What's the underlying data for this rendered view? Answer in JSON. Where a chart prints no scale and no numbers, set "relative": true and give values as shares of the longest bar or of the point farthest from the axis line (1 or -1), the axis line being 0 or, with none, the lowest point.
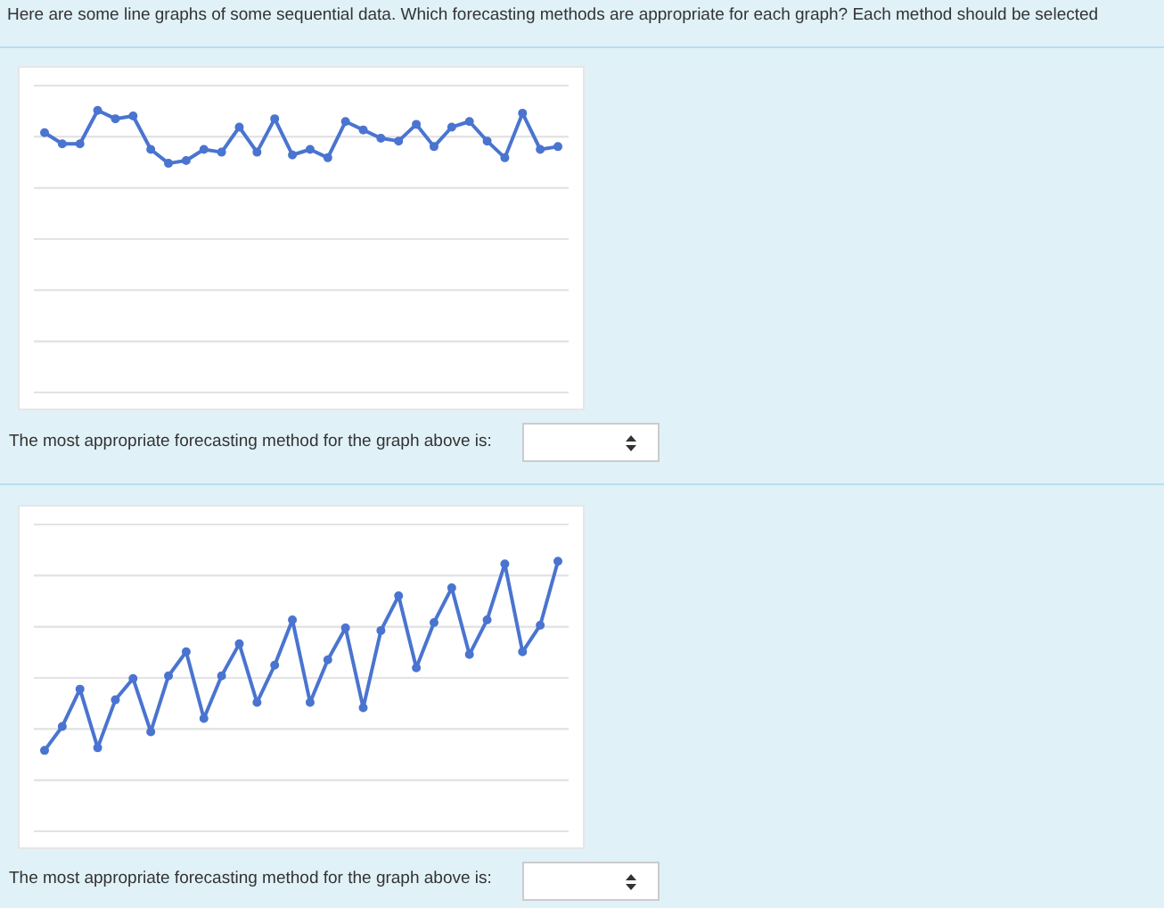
{
  "chart_data": [
    {
      "type": "line",
      "title": "Here are some line graphs of some sequential data. Which forecasting methods are appropriate for each graph? Each method should be selected",
      "relative": true,
      "grid": true,
      "marker": "circle",
      "line_style": "solid",
      "categories": [
        null,
        null,
        null,
        null,
        null,
        null,
        null,
        null,
        null,
        null,
        null,
        null,
        null,
        null,
        null,
        null,
        null,
        null,
        null,
        null,
        null,
        null,
        null,
        null,
        null,
        null,
        null,
        null,
        null,
        null
      ],
      "series": [
        {
          "color": "#4a74d0",
          "values": [
            0.92,
            0.88,
            0.88,
            1,
            0.97,
            0.98,
            0.86,
            0.81,
            0.82,
            0.86,
            0.85,
            0.94,
            0.85,
            0.97,
            0.84,
            0.86,
            0.83,
            0.96,
            0.93,
            0.9,
            0.89,
            0.95,
            0.87,
            0.94,
            0.96,
            0.89,
            0.83,
            0.99,
            0.86,
            0.87
          ]
        }
      ],
      "annotations": [
        "The most appropriate forecasting method for the graph above is:"
      ]
    },
    {
      "type": "line",
      "relative": true,
      "grid": true,
      "marker": "circle",
      "line_style": "solid",
      "categories": [
        null,
        null,
        null,
        null,
        null,
        null,
        null,
        null,
        null,
        null,
        null,
        null,
        null,
        null,
        null,
        null,
        null,
        null,
        null,
        null,
        null,
        null,
        null,
        null,
        null,
        null,
        null,
        null,
        null,
        null
      ],
      "series": [
        {
          "color": "#4a74d0",
          "values": [
            0.29,
            0.38,
            0.52,
            0.3,
            0.48,
            0.56,
            0.36,
            0.57,
            0.66,
            0.41,
            0.57,
            0.69,
            0.47,
            0.61,
            0.78,
            0.47,
            0.63,
            0.75,
            0.45,
            0.74,
            0.87,
            0.6,
            0.77,
            0.9,
            0.65,
            0.78,
            0.99,
            0.66,
            0.76,
            1
          ]
        }
      ],
      "annotations": [
        "The most appropriate forecasting method for the graph above is:"
      ]
    }
  ]
}
